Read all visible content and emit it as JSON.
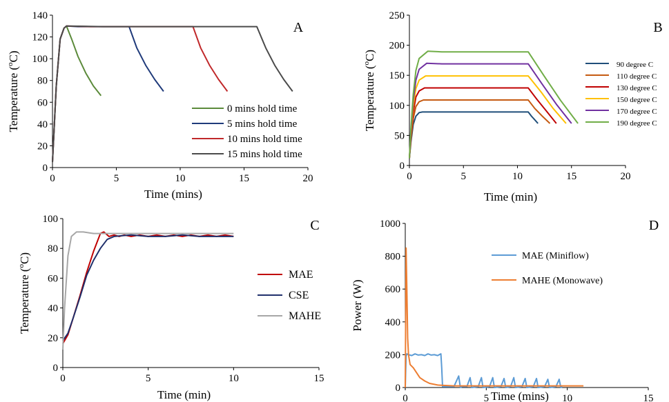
{
  "chart_data": [
    {
      "panel": "A",
      "type": "line",
      "xlabel": "Time (mins)",
      "ylabel_main": "Temperature (",
      "ylabel_sup": "o",
      "ylabel_tail": "C)",
      "xlim": [
        0,
        20
      ],
      "ylim": [
        0,
        140
      ],
      "xticks": [
        0,
        5,
        10,
        15,
        20
      ],
      "yticks": [
        0,
        20,
        40,
        60,
        80,
        100,
        120,
        140
      ],
      "legend_placement": "bottom-right",
      "series": [
        {
          "name": "0 mins hold time",
          "color": "#5b8a3a",
          "x": [
            0,
            0.3,
            0.6,
            0.9,
            1.1,
            1.5,
            2.0,
            2.6,
            3.2,
            3.8
          ],
          "y": [
            5,
            75,
            118,
            128,
            130,
            118,
            102,
            87,
            75,
            66
          ]
        },
        {
          "name": "5 mins hold time",
          "color": "#1f3a7a",
          "x": [
            0,
            0.3,
            0.6,
            0.9,
            1.1,
            2,
            4,
            6.0,
            6.6,
            7.3,
            8.0,
            8.7
          ],
          "y": [
            5,
            75,
            118,
            128,
            130,
            129.5,
            129.5,
            129.5,
            110,
            94,
            81,
            70
          ]
        },
        {
          "name": "10 mins hold time",
          "color": "#c0282a",
          "x": [
            0,
            0.3,
            0.6,
            0.9,
            1.1,
            3,
            6,
            9,
            11.0,
            11.6,
            12.3,
            13.0,
            13.7
          ],
          "y": [
            5,
            75,
            118,
            128,
            130,
            129.5,
            129.5,
            129.5,
            129.5,
            110,
            94,
            81,
            70
          ]
        },
        {
          "name": "15 mins hold time",
          "color": "#4a4a4a",
          "x": [
            0,
            0.3,
            0.6,
            0.9,
            1.1,
            4,
            8,
            12,
            16.0,
            16.7,
            17.4,
            18.1,
            18.8
          ],
          "y": [
            5,
            75,
            118,
            128,
            130,
            129.5,
            129.5,
            129.5,
            129.5,
            110,
            94,
            81,
            70
          ]
        }
      ],
      "annotation": "A"
    },
    {
      "panel": "B",
      "type": "line",
      "xlabel": "Time (min)",
      "ylabel_main": "Temperature (",
      "ylabel_sup": "o",
      "ylabel_tail": "C)",
      "xlim": [
        0,
        20
      ],
      "ylim": [
        0,
        250
      ],
      "xticks": [
        0,
        5,
        10,
        15,
        20
      ],
      "yticks": [
        0,
        50,
        100,
        150,
        200,
        250
      ],
      "legend_placement": "right",
      "series": [
        {
          "name": "90 degree C",
          "color": "#1f4e79",
          "x": [
            0,
            0.15,
            0.35,
            0.6,
            0.9,
            1.2,
            3,
            6,
            9,
            11.0,
            11.3,
            11.6,
            11.9
          ],
          "y": [
            12,
            40,
            68,
            82,
            88,
            89,
            89,
            89,
            89,
            89,
            82,
            76,
            70
          ]
        },
        {
          "name": "110 degree C",
          "color": "#c55a11",
          "x": [
            0,
            0.15,
            0.35,
            0.6,
            0.9,
            1.3,
            3,
            6,
            9,
            11.0,
            11.6,
            12.3,
            13.0
          ],
          "y": [
            12,
            45,
            78,
            98,
            106,
            109,
            109,
            109,
            109,
            109,
            95,
            82,
            70
          ]
        },
        {
          "name": "130 degree C",
          "color": "#c00000",
          "x": [
            0,
            0.15,
            0.35,
            0.6,
            0.9,
            1.4,
            3,
            6,
            9,
            11.0,
            11.8,
            12.7,
            13.6
          ],
          "y": [
            12,
            50,
            88,
            114,
            124,
            129,
            129,
            129,
            129,
            129,
            110,
            90,
            70
          ]
        },
        {
          "name": "150 degree C",
          "color": "#ffc000",
          "x": [
            0,
            0.15,
            0.35,
            0.6,
            0.9,
            1.5,
            3,
            6,
            9,
            11.0,
            12.2,
            13.3,
            14.5
          ],
          "y": [
            12,
            55,
            98,
            128,
            142,
            149,
            149,
            149,
            149,
            149,
            122,
            95,
            70
          ]
        },
        {
          "name": "170 degree C",
          "color": "#7030a0",
          "x": [
            0,
            0.15,
            0.35,
            0.6,
            0.9,
            1.6,
            3,
            6,
            9,
            11.0,
            12.3,
            13.6,
            15.0
          ],
          "y": [
            12,
            60,
            108,
            142,
            160,
            170,
            169,
            169,
            169,
            169,
            135,
            102,
            70
          ]
        },
        {
          "name": "190 degree C",
          "color": "#70ad47",
          "x": [
            0,
            0.15,
            0.35,
            0.6,
            0.9,
            1.7,
            3,
            6,
            9,
            11.0,
            12.5,
            14.0,
            15.6
          ],
          "y": [
            12,
            65,
            118,
            158,
            178,
            190,
            189,
            189,
            189,
            189,
            148,
            108,
            70
          ]
        }
      ],
      "annotation": "B"
    },
    {
      "panel": "C",
      "type": "line",
      "xlabel": "Time (min)",
      "ylabel_main": "Temperature (",
      "ylabel_sup": "o",
      "ylabel_tail": "C)",
      "xlim": [
        0,
        15
      ],
      "ylim": [
        0,
        100
      ],
      "xticks": [
        0,
        5,
        10,
        15
      ],
      "yticks": [
        0,
        20,
        40,
        60,
        80,
        100
      ],
      "legend_placement": "right",
      "series": [
        {
          "name": "MAE",
          "color": "#c00000",
          "x": [
            0,
            0.3,
            0.6,
            1.0,
            1.4,
            1.8,
            2.2,
            2.4,
            2.7,
            3.0,
            3.3,
            3.6,
            4,
            4.5,
            5,
            5.5,
            6,
            6.5,
            7,
            7.5,
            8,
            8.5,
            9,
            9.5,
            10
          ],
          "y": [
            16,
            22,
            33,
            48,
            64,
            78,
            90,
            91,
            88,
            89,
            88,
            89,
            88,
            89,
            88,
            89,
            88,
            89,
            88,
            89,
            88,
            89,
            88,
            89,
            88
          ]
        },
        {
          "name": "CSE",
          "color": "#1f2f6b",
          "x": [
            0,
            0.3,
            0.6,
            1.0,
            1.4,
            1.8,
            2.2,
            2.6,
            3.0,
            3.5,
            4,
            5,
            6,
            7,
            8,
            9,
            10
          ],
          "y": [
            18,
            23,
            33,
            47,
            62,
            72,
            80,
            86,
            88,
            88.5,
            89,
            88,
            88,
            89,
            88,
            88,
            88
          ]
        },
        {
          "name": "MAHE",
          "color": "#a6a6a6",
          "x": [
            0,
            0.1,
            0.3,
            0.5,
            0.8,
            1.2,
            1.8,
            3,
            5,
            7,
            9,
            10
          ],
          "y": [
            12,
            40,
            75,
            88,
            91,
            91,
            90,
            90,
            90,
            90,
            90,
            90
          ]
        }
      ],
      "annotation": "C"
    },
    {
      "panel": "D",
      "type": "line",
      "xlabel": "Time (mins)",
      "ylabel": "Power (W)",
      "xlim": [
        0,
        15
      ],
      "ylim": [
        0,
        1000
      ],
      "xticks": [
        0,
        5,
        10,
        15
      ],
      "yticks": [
        0,
        200,
        400,
        600,
        800,
        1000
      ],
      "legend_placement": "top-right",
      "series": [
        {
          "name": "MAE (Miniflow)",
          "color": "#5b9bd5",
          "x": [
            0,
            0.05,
            0.1,
            0.2,
            0.4,
            0.6,
            0.8,
            1.0,
            1.2,
            1.4,
            1.6,
            1.8,
            2.0,
            2.2,
            2.25,
            2.3,
            3.0,
            3.3,
            3.4,
            3.5,
            3.8,
            4.0,
            4.1,
            4.5,
            4.7,
            4.8,
            5.2,
            5.4,
            5.5,
            5.9,
            6.1,
            6.2,
            6.5,
            6.7,
            6.8,
            7.2,
            7.4,
            7.5,
            7.9,
            8.1,
            8.2,
            8.6,
            8.8,
            8.9,
            9.3,
            9.5,
            9.6,
            9.7
          ],
          "y": [
            0,
            190,
            205,
            200,
            195,
            205,
            198,
            200,
            195,
            205,
            198,
            200,
            195,
            205,
            120,
            5,
            5,
            70,
            0,
            5,
            5,
            60,
            0,
            5,
            60,
            0,
            5,
            60,
            0,
            5,
            55,
            0,
            5,
            60,
            0,
            5,
            55,
            0,
            5,
            55,
            0,
            5,
            50,
            0,
            5,
            50,
            0,
            5
          ]
        },
        {
          "name": "MAHE (Monowave)",
          "color": "#ed7d31",
          "x": [
            0,
            0.05,
            0.1,
            0.15,
            0.2,
            0.3,
            0.5,
            0.7,
            0.9,
            1.2,
            1.5,
            2.0,
            3,
            5,
            7,
            9,
            11
          ],
          "y": [
            0,
            850,
            600,
            300,
            200,
            140,
            120,
            90,
            60,
            40,
            25,
            15,
            10,
            10,
            10,
            10,
            10
          ]
        }
      ],
      "annotation": "D"
    }
  ]
}
